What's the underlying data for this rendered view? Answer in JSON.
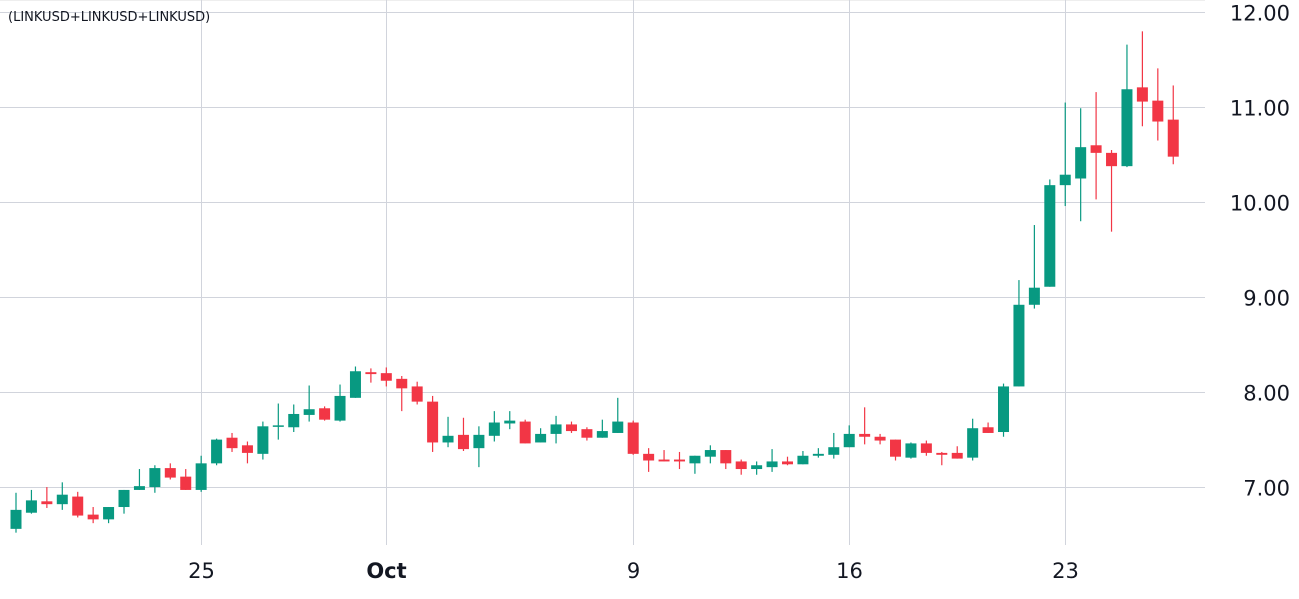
{
  "chart_data": {
    "type": "candlestick",
    "title": "(LINKUSD+LINKUSD+LINKUSD)",
    "interval_hours": 12,
    "first": "Sep 19 00:00",
    "ylim": [
      6.39,
      12.13
    ],
    "grid": true,
    "colors": {
      "up": "#089981",
      "down": "#F23645",
      "grid": "#d1d4dc",
      "text": "#131722"
    },
    "y_ticks": [
      {
        "value": 7,
        "label": "7.00"
      },
      {
        "value": 8,
        "label": "8.00"
      },
      {
        "value": 9,
        "label": "9.00"
      },
      {
        "value": 10,
        "label": "10.00"
      },
      {
        "value": 11,
        "label": "11.00"
      },
      {
        "value": 12,
        "label": "12.00"
      }
    ],
    "x_ticks": [
      {
        "date": "Sep 25 00:00",
        "label": "25",
        "bold": false
      },
      {
        "date": "Oct 1 00:00",
        "label": "Oct",
        "bold": true
      },
      {
        "date": "Oct 9 00:00",
        "label": "9",
        "bold": false
      },
      {
        "date": "Oct 16 00:00",
        "label": "16",
        "bold": false
      },
      {
        "date": "Oct 23 00:00",
        "label": "23",
        "bold": false
      }
    ],
    "columns": [
      "open",
      "high",
      "low",
      "close"
    ],
    "candles": [
      [
        6.56,
        6.94,
        6.52,
        6.76
      ],
      [
        6.73,
        6.97,
        6.72,
        6.86
      ],
      [
        6.85,
        7.0,
        6.78,
        6.82
      ],
      [
        6.82,
        7.05,
        6.76,
        6.92
      ],
      [
        6.9,
        6.95,
        6.68,
        6.7
      ],
      [
        6.71,
        6.79,
        6.62,
        6.66
      ],
      [
        6.66,
        6.79,
        6.62,
        6.79
      ],
      [
        6.79,
        6.97,
        6.72,
        6.97
      ],
      [
        6.97,
        7.19,
        6.97,
        7.01
      ],
      [
        7.0,
        7.23,
        6.94,
        7.2
      ],
      [
        7.2,
        7.25,
        7.08,
        7.1
      ],
      [
        7.11,
        7.19,
        6.97,
        6.97
      ],
      [
        6.97,
        7.33,
        6.95,
        7.25
      ],
      [
        7.25,
        7.51,
        7.23,
        7.5
      ],
      [
        7.52,
        7.57,
        7.37,
        7.41
      ],
      [
        7.44,
        7.48,
        7.25,
        7.36
      ],
      [
        7.35,
        7.69,
        7.29,
        7.64
      ],
      [
        7.64,
        7.88,
        7.5,
        7.65
      ],
      [
        7.63,
        7.87,
        7.58,
        7.77
      ],
      [
        7.76,
        8.07,
        7.69,
        7.82
      ],
      [
        7.83,
        7.85,
        7.7,
        7.71
      ],
      [
        7.7,
        8.08,
        7.69,
        7.96
      ],
      [
        7.94,
        8.27,
        7.94,
        8.22
      ],
      [
        8.21,
        8.25,
        8.1,
        8.19
      ],
      [
        8.2,
        8.26,
        8.06,
        8.12
      ],
      [
        8.14,
        8.17,
        7.8,
        8.04
      ],
      [
        8.06,
        8.11,
        7.87,
        7.9
      ],
      [
        7.9,
        7.96,
        7.37,
        7.47
      ],
      [
        7.47,
        7.74,
        7.42,
        7.54
      ],
      [
        7.55,
        7.73,
        7.38,
        7.4
      ],
      [
        7.41,
        7.64,
        7.21,
        7.55
      ],
      [
        7.54,
        7.8,
        7.48,
        7.68
      ],
      [
        7.67,
        7.8,
        7.61,
        7.7
      ],
      [
        7.69,
        7.71,
        7.46,
        7.46
      ],
      [
        7.47,
        7.62,
        7.47,
        7.56
      ],
      [
        7.56,
        7.75,
        7.46,
        7.66
      ],
      [
        7.66,
        7.69,
        7.57,
        7.59
      ],
      [
        7.61,
        7.63,
        7.49,
        7.52
      ],
      [
        7.52,
        7.71,
        7.52,
        7.59
      ],
      [
        7.57,
        7.94,
        7.57,
        7.69
      ],
      [
        7.68,
        7.7,
        7.34,
        7.35
      ],
      [
        7.35,
        7.41,
        7.16,
        7.28
      ],
      [
        7.29,
        7.39,
        7.27,
        7.27
      ],
      [
        7.29,
        7.37,
        7.19,
        7.27
      ],
      [
        7.25,
        7.33,
        7.14,
        7.33
      ],
      [
        7.32,
        7.44,
        7.25,
        7.39
      ],
      [
        7.39,
        7.39,
        7.19,
        7.25
      ],
      [
        7.27,
        7.29,
        7.13,
        7.19
      ],
      [
        7.19,
        7.27,
        7.13,
        7.23
      ],
      [
        7.21,
        7.4,
        7.16,
        7.27
      ],
      [
        7.27,
        7.32,
        7.23,
        7.24
      ],
      [
        7.24,
        7.38,
        7.24,
        7.33
      ],
      [
        7.33,
        7.41,
        7.31,
        7.35
      ],
      [
        7.34,
        7.57,
        7.3,
        7.42
      ],
      [
        7.42,
        7.65,
        7.42,
        7.56
      ],
      [
        7.56,
        7.84,
        7.45,
        7.53
      ],
      [
        7.53,
        7.56,
        7.45,
        7.49
      ],
      [
        7.5,
        7.5,
        7.28,
        7.32
      ],
      [
        7.31,
        7.47,
        7.3,
        7.46
      ],
      [
        7.46,
        7.49,
        7.33,
        7.36
      ],
      [
        7.36,
        7.37,
        7.23,
        7.34
      ],
      [
        7.36,
        7.43,
        7.3,
        7.3
      ],
      [
        7.31,
        7.72,
        7.28,
        7.62
      ],
      [
        7.63,
        7.68,
        7.57,
        7.57
      ],
      [
        7.58,
        8.09,
        7.53,
        8.06
      ],
      [
        8.06,
        9.18,
        8.06,
        8.92
      ],
      [
        8.92,
        9.76,
        8.88,
        9.1
      ],
      [
        9.11,
        10.24,
        9.11,
        10.18
      ],
      [
        10.18,
        11.05,
        9.96,
        10.29
      ],
      [
        10.25,
        10.99,
        9.8,
        10.58
      ],
      [
        10.6,
        11.16,
        10.03,
        10.52
      ],
      [
        10.52,
        10.55,
        9.69,
        10.38
      ],
      [
        10.38,
        11.66,
        10.37,
        11.19
      ],
      [
        11.21,
        11.8,
        10.8,
        11.06
      ],
      [
        11.07,
        11.41,
        10.65,
        10.85
      ],
      [
        10.87,
        11.23,
        10.4,
        10.48
      ]
    ]
  }
}
